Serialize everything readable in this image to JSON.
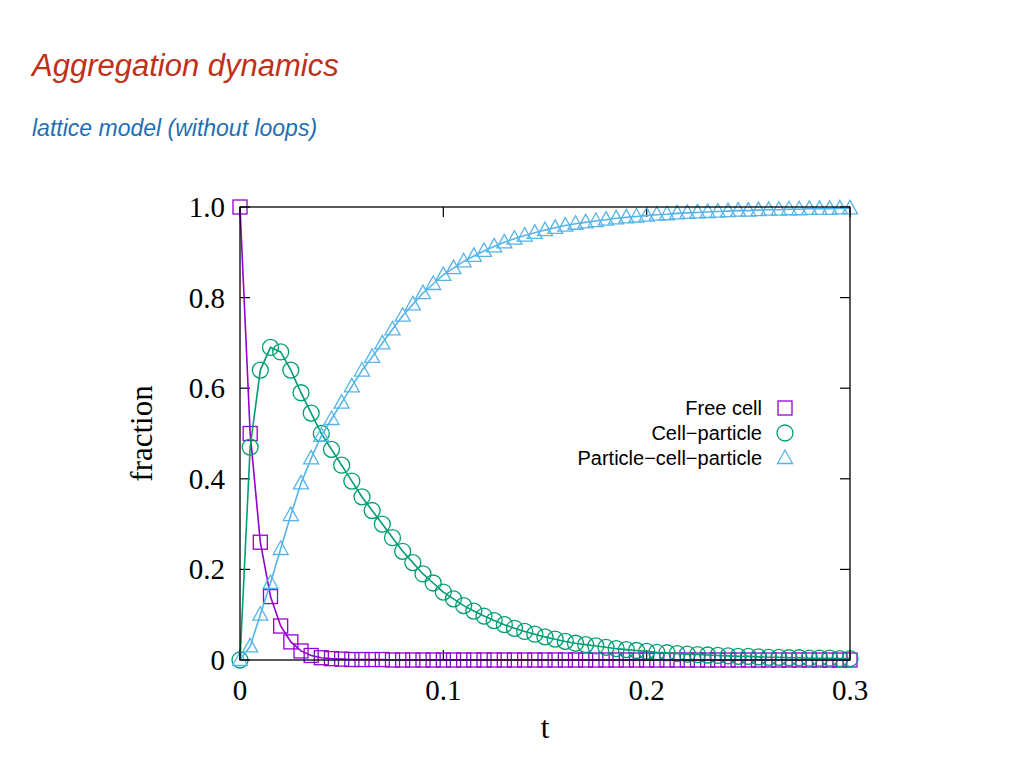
{
  "chart_data": {
    "type": "line",
    "title": "Aggregation dynamics",
    "subtitle": "lattice model (without loops)",
    "x_label": "t",
    "y_label": "fraction",
    "xlim": [
      0,
      0.3
    ],
    "ylim": [
      0,
      1
    ],
    "xticks": [
      0,
      0.1,
      0.2,
      0.3
    ],
    "yticks": [
      0,
      0.2,
      0.4,
      0.6,
      0.8,
      {
        "value": 1,
        "label": "1.0"
      }
    ],
    "grid": false,
    "legend": "right",
    "x": [
      0,
      0.005,
      0.01,
      0.015,
      0.02,
      0.025,
      0.03,
      0.035,
      0.04,
      0.045,
      0.05,
      0.055,
      0.06,
      0.065,
      0.07,
      0.075,
      0.08,
      0.085,
      0.09,
      0.095,
      0.1,
      0.105,
      0.11,
      0.115,
      0.12,
      0.125,
      0.13,
      0.135,
      0.14,
      0.145,
      0.15,
      0.155,
      0.16,
      0.165,
      0.17,
      0.175,
      0.18,
      0.185,
      0.19,
      0.195,
      0.2,
      0.205,
      0.21,
      0.215,
      0.22,
      0.225,
      0.23,
      0.235,
      0.24,
      0.245,
      0.25,
      0.255,
      0.26,
      0.265,
      0.27,
      0.275,
      0.28,
      0.285,
      0.29,
      0.295,
      0.3
    ],
    "series": [
      {
        "name": "Free cell",
        "color": "#9400d3",
        "marker": "square",
        "line_style": "solid",
        "values": [
          1,
          0.5,
          0.26,
          0.14,
          0.075,
          0.04,
          0.02,
          0.01,
          0.005,
          0.003,
          0.002,
          0.001,
          0.001,
          0.001,
          0.001,
          0,
          0,
          0,
          0,
          0,
          0,
          0,
          0,
          0,
          0,
          0,
          0,
          0,
          0,
          0,
          0,
          0,
          0,
          0,
          0,
          0,
          0,
          0,
          0,
          0,
          0,
          0,
          0,
          0,
          0,
          0,
          0,
          0,
          0,
          0,
          0,
          0,
          0,
          0,
          0,
          0,
          0,
          0,
          0,
          0,
          0
        ]
      },
      {
        "name": "Cell−particle",
        "color": "#009e73",
        "marker": "circle",
        "line_style": "solid",
        "values": [
          0,
          0.47,
          0.64,
          0.69,
          0.68,
          0.64,
          0.59,
          0.545,
          0.5,
          0.465,
          0.43,
          0.395,
          0.36,
          0.33,
          0.3,
          0.27,
          0.24,
          0.215,
          0.19,
          0.17,
          0.15,
          0.135,
          0.12,
          0.108,
          0.097,
          0.087,
          0.078,
          0.07,
          0.063,
          0.057,
          0.051,
          0.046,
          0.041,
          0.037,
          0.034,
          0.031,
          0.028,
          0.025,
          0.023,
          0.021,
          0.019,
          0.017,
          0.016,
          0.014,
          0.013,
          0.012,
          0.011,
          0.01,
          0.009,
          0.008,
          0.008,
          0.007,
          0.006,
          0.006,
          0.005,
          0.005,
          0.004,
          0.004,
          0.004,
          0.003,
          0.003
        ]
      },
      {
        "name": "Particle−cell−particle",
        "color": "#56b4e9",
        "marker": "triangle",
        "line_style": "solid",
        "values": [
          0,
          0.03,
          0.1,
          0.17,
          0.245,
          0.32,
          0.39,
          0.445,
          0.495,
          0.532,
          0.568,
          0.604,
          0.639,
          0.669,
          0.699,
          0.73,
          0.76,
          0.785,
          0.81,
          0.83,
          0.85,
          0.865,
          0.88,
          0.892,
          0.903,
          0.913,
          0.922,
          0.93,
          0.937,
          0.943,
          0.949,
          0.954,
          0.959,
          0.963,
          0.966,
          0.969,
          0.972,
          0.975,
          0.977,
          0.979,
          0.981,
          0.983,
          0.984,
          0.986,
          0.987,
          0.988,
          0.989,
          0.99,
          0.991,
          0.992,
          0.992,
          0.993,
          0.994,
          0.994,
          0.995,
          0.995,
          0.996,
          0.996,
          0.996,
          0.997,
          0.997
        ]
      }
    ]
  }
}
